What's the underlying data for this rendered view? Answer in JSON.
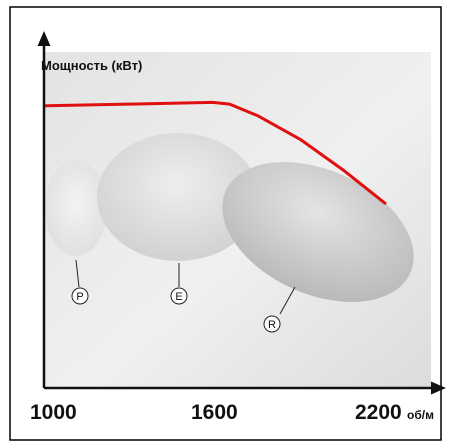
{
  "chart_data": {
    "type": "line",
    "title": "",
    "ylabel": "Мощность (кВт)",
    "xlabel": "",
    "x_unit": "об/м",
    "x_ticks": [
      {
        "value": 1000,
        "label": "1000"
      },
      {
        "value": 1600,
        "label": "1600"
      },
      {
        "value": 2200,
        "label": "2200"
      }
    ],
    "xlim": [
      1000,
      2200
    ],
    "grid": false,
    "legend": "none",
    "series": [
      {
        "color": "#e01010",
        "x": [
          1000,
          1300,
          1590,
          1650,
          1750,
          1900,
          2050,
          2200
        ],
        "y": [
          0.84,
          0.845,
          0.85,
          0.845,
          0.81,
          0.74,
          0.65,
          0.55
        ]
      }
    ],
    "zones": [
      {
        "label": "P",
        "x_min": 1000,
        "x_max": 1130
      },
      {
        "label": "E",
        "x_min": 1130,
        "x_max": 1600
      },
      {
        "label": "R",
        "x_min": 1600,
        "x_max": 2200
      }
    ]
  }
}
